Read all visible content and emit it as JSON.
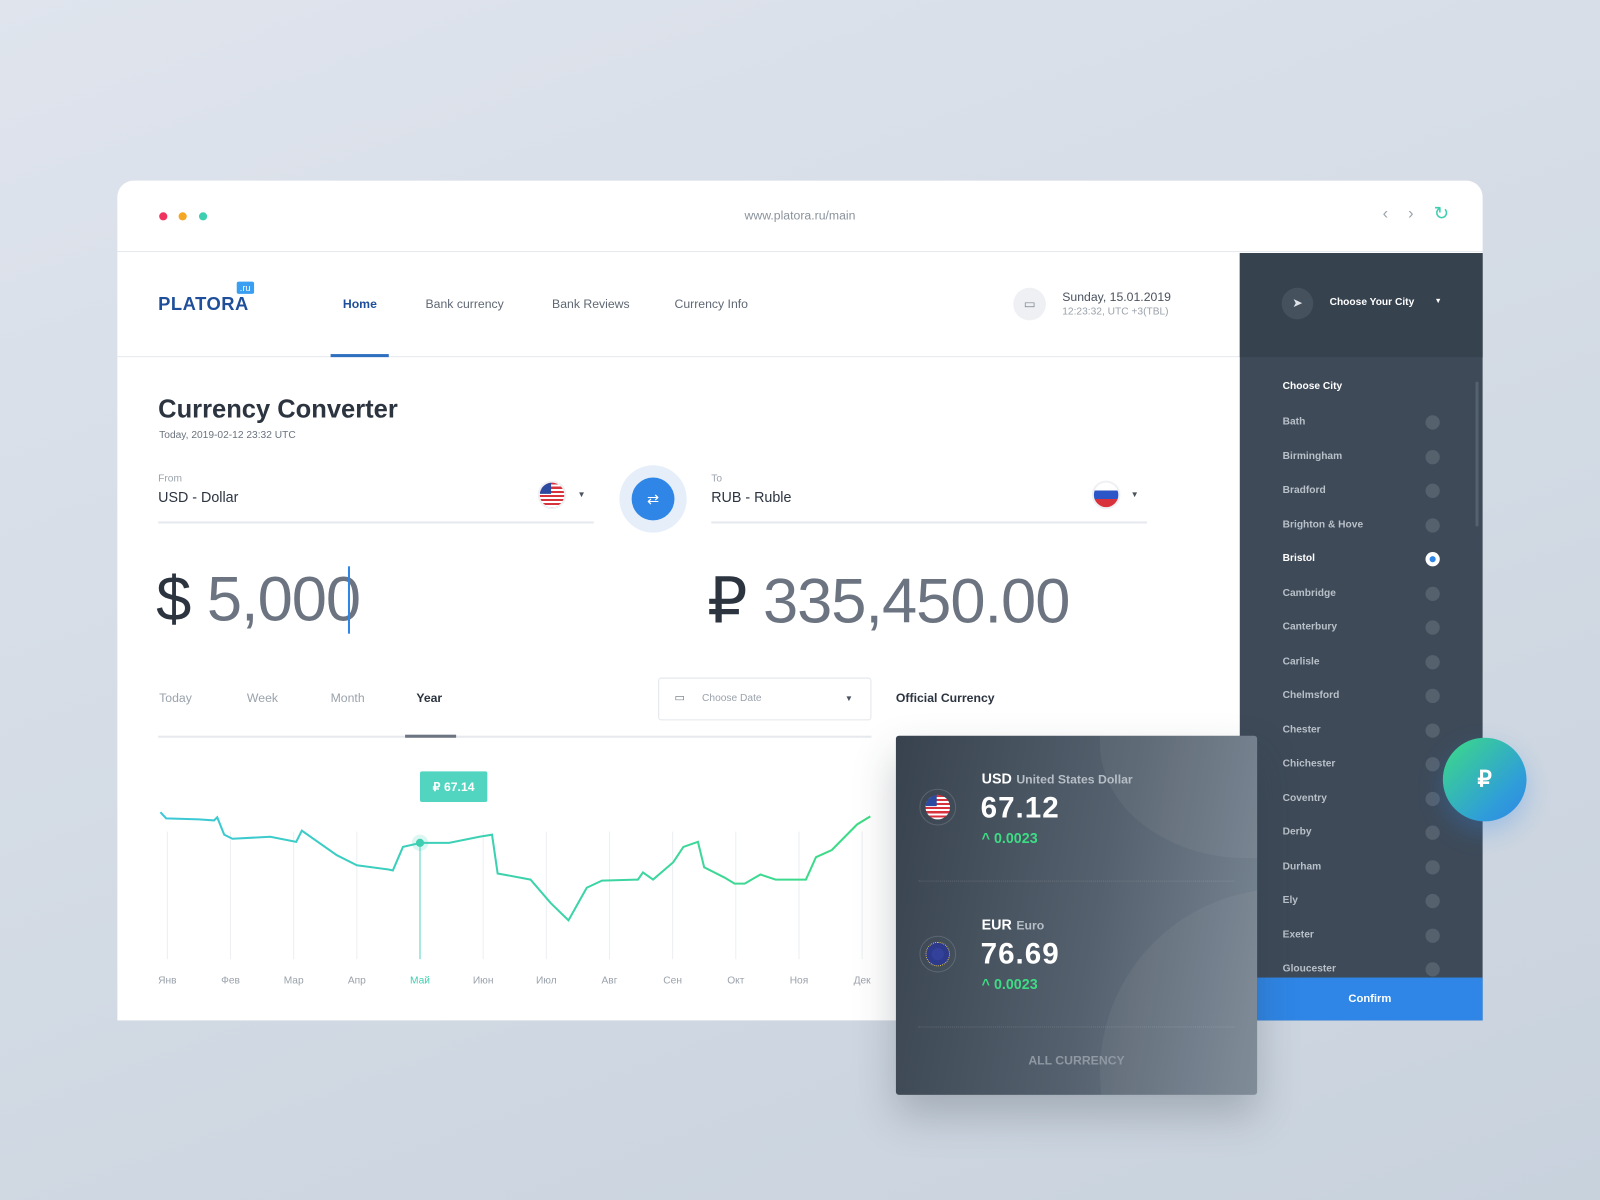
{
  "browser": {
    "url": "www.platora.ru/main",
    "dots": [
      "#f0325f",
      "#f5a623",
      "#3ecfb0"
    ],
    "back_icon": "chevron-left",
    "forward_icon": "chevron-right",
    "reload_icon": "refresh"
  },
  "header": {
    "logo": "PLATORA",
    "logo_badge": ".ru",
    "nav": [
      "Home",
      "Bank currency",
      "Bank Reviews",
      "Currency Info"
    ],
    "active_nav": "Home",
    "date": "Sunday, 15.01.2019",
    "time": "12:23:32, UTC +3(TBL)"
  },
  "converter": {
    "title": "Currency Converter",
    "subtitle": "Today, 2019-02-12 23:32 UTC",
    "from_label": "From",
    "from_value": "USD - Dollar",
    "to_label": "To",
    "to_value": "RUB - Ruble",
    "from_symbol": "$",
    "from_amount": "5,000",
    "to_symbol": "₽",
    "to_amount": "335,450.00",
    "accent": "#2f86e6"
  },
  "period_tabs": [
    "Today",
    "Week",
    "Month",
    "Year"
  ],
  "active_tab": "Year",
  "date_picker": {
    "placeholder": "Choose Date"
  },
  "official": {
    "title": "Official Currency",
    "items": [
      {
        "code": "USD",
        "name": "United States Dollar",
        "rate": "67.12",
        "change": "0.0023"
      },
      {
        "code": "EUR",
        "name": "Euro",
        "rate": "76.69",
        "change": "0.0023"
      }
    ],
    "all_label": "ALL CURRENCY"
  },
  "city": {
    "header": "Choose Your City",
    "list_title": "Choose City",
    "cities": [
      "Bath",
      "Birmingham",
      "Bradford",
      "Brighton & Hove",
      "Bristol",
      "Cambridge",
      "Canterbury",
      "Carlisle",
      "Chelmsford",
      "Chester",
      "Chichester",
      "Coventry",
      "Derby",
      "Durham",
      "Ely",
      "Exeter",
      "Gloucester"
    ],
    "selected": "Bristol",
    "confirm": "Confirm"
  },
  "fab": {
    "label": "₽"
  },
  "chart_data": {
    "type": "line",
    "categories": [
      "Янв",
      "Фев",
      "Мар",
      "Апр",
      "Май",
      "Июн",
      "Июл",
      "Авг",
      "Сен",
      "Окт",
      "Ноя",
      "Дек"
    ],
    "highlight": {
      "month": "Май",
      "x": 5,
      "label": "₽ 67.14",
      "value": 67.14
    },
    "grid": "vertical",
    "colors": [
      "#3cc8d8",
      "#3ddc84"
    ],
    "points": [
      [
        0.89,
        68.64
      ],
      [
        0.98,
        68.34
      ],
      [
        1.5,
        68.29
      ],
      [
        1.74,
        68.24
      ],
      [
        1.79,
        68.39
      ],
      [
        1.9,
        67.54
      ],
      [
        2.03,
        67.34
      ],
      [
        2.63,
        67.44
      ],
      [
        3.04,
        67.19
      ],
      [
        3.13,
        67.74
      ],
      [
        3.68,
        66.54
      ],
      [
        4.0,
        66.04
      ],
      [
        4.49,
        65.84
      ],
      [
        4.57,
        65.79
      ],
      [
        4.73,
        66.94
      ],
      [
        5.01,
        67.14
      ],
      [
        5.46,
        67.14
      ],
      [
        5.94,
        67.44
      ],
      [
        6.14,
        67.54
      ],
      [
        6.23,
        65.64
      ],
      [
        6.75,
        65.34
      ],
      [
        7.07,
        64.19
      ],
      [
        7.35,
        63.34
      ],
      [
        7.64,
        64.94
      ],
      [
        7.88,
        65.29
      ],
      [
        8.45,
        65.34
      ],
      [
        8.53,
        65.69
      ],
      [
        8.69,
        65.34
      ],
      [
        9.01,
        66.19
      ],
      [
        9.17,
        66.94
      ],
      [
        9.4,
        67.19
      ],
      [
        9.5,
        65.94
      ],
      [
        9.82,
        65.44
      ],
      [
        9.98,
        65.14
      ],
      [
        10.14,
        65.14
      ],
      [
        10.39,
        65.59
      ],
      [
        10.63,
        65.34
      ],
      [
        11.11,
        65.34
      ],
      [
        11.27,
        66.44
      ],
      [
        11.52,
        66.79
      ],
      [
        11.92,
        68.04
      ],
      [
        12.13,
        68.44
      ]
    ]
  }
}
